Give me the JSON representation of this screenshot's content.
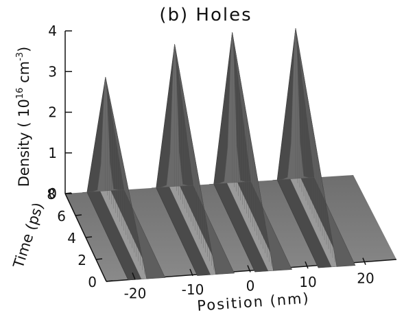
{
  "chart_data": {
    "type": "surface",
    "title": "(b) Holes",
    "xlabel": "Position (nm)",
    "ylabel": "Time (ps)",
    "zlabel_prefix": "Density ( 10",
    "zlabel_exp1": "16",
    "zlabel_mid": " cm",
    "zlabel_exp2": "-3",
    "zlabel_suffix": ")",
    "x_ticks": [
      "-20",
      "-10",
      "0",
      "10",
      "20"
    ],
    "y_ticks": [
      "0",
      "2",
      "4",
      "6",
      "8"
    ],
    "z_ticks": [
      "0",
      "1",
      "2",
      "3",
      "4"
    ],
    "xlim": [
      -25,
      25
    ],
    "ylim": [
      0,
      8
    ],
    "zlim": [
      0,
      4
    ],
    "peaks": [
      {
        "position": -18,
        "peak_density": 2.8
      },
      {
        "position": -6,
        "peak_density": 3.5
      },
      {
        "position": 4,
        "peak_density": 3.7
      },
      {
        "position": 15,
        "peak_density": 3.7
      }
    ]
  }
}
